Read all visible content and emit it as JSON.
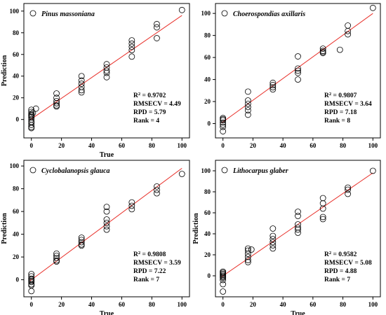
{
  "colors": {
    "regression_line": "#e8302a",
    "marker_edge": "#000000",
    "axes": "#000000"
  },
  "chart_data": [
    {
      "type": "scatter",
      "species": "Pinus massoniana",
      "xlabel": "True",
      "ylabel": "Prediction",
      "xlim": [
        -5,
        105
      ],
      "ylim": [
        -17,
        107
      ],
      "xticks": [
        0,
        20,
        40,
        60,
        80,
        100
      ],
      "yticks": [
        0,
        20,
        40,
        60,
        80,
        100
      ],
      "stats": {
        "r2_label": "R",
        "r2_value": "= 0.9702",
        "rmsecv": "RMSECV = 4.49",
        "rpd": "RPD = 5.79",
        "rank": "Rank = 4"
      },
      "fit_line": {
        "x": [
          -1,
          100
        ],
        "y": [
          -0.5,
          96
        ]
      },
      "points": [
        [
          0,
          9
        ],
        [
          0,
          7
        ],
        [
          0,
          5
        ],
        [
          0,
          3
        ],
        [
          0,
          2
        ],
        [
          0,
          0
        ],
        [
          0,
          -2
        ],
        [
          0,
          -3
        ],
        [
          0,
          -5
        ],
        [
          0,
          -7
        ],
        [
          0,
          -8
        ],
        [
          0,
          4
        ],
        [
          1,
          6
        ],
        [
          3,
          10
        ],
        [
          16.7,
          24
        ],
        [
          16.7,
          20
        ],
        [
          16.7,
          17
        ],
        [
          16.7,
          15
        ],
        [
          16.7,
          13
        ],
        [
          16.7,
          12
        ],
        [
          33.3,
          40
        ],
        [
          33.3,
          36
        ],
        [
          33.3,
          33
        ],
        [
          33.3,
          30
        ],
        [
          33.3,
          27
        ],
        [
          33.3,
          25
        ],
        [
          50,
          51
        ],
        [
          50,
          48
        ],
        [
          50,
          45
        ],
        [
          50,
          43
        ],
        [
          50,
          39
        ],
        [
          66.7,
          73
        ],
        [
          66.7,
          70
        ],
        [
          66.7,
          67
        ],
        [
          66.7,
          64
        ],
        [
          66.7,
          58
        ],
        [
          83.3,
          88
        ],
        [
          83.3,
          85
        ],
        [
          83.3,
          75
        ],
        [
          100,
          101
        ]
      ]
    },
    {
      "type": "scatter",
      "species": "Choerospondias axillaris",
      "xlabel": "",
      "ylabel": "",
      "xlim": [
        -5,
        105
      ],
      "ylim": [
        -13,
        109
      ],
      "xticks": [
        0,
        20,
        40,
        60,
        80,
        100
      ],
      "yticks": [
        0,
        20,
        40,
        60,
        80,
        100
      ],
      "stats": {
        "r2_label": "R",
        "r2_value": "= 0.9807",
        "rmsecv": "RMSECV = 3.64",
        "rpd": "RPD = 7.18",
        "rank": "Rank = 8"
      },
      "fit_line": {
        "x": [
          -1,
          100
        ],
        "y": [
          0.5,
          100
        ]
      },
      "points": [
        [
          0,
          5
        ],
        [
          0,
          3
        ],
        [
          0,
          1
        ],
        [
          0,
          -1
        ],
        [
          0,
          -3
        ],
        [
          0,
          -7
        ],
        [
          0,
          4
        ],
        [
          16.7,
          29
        ],
        [
          16.7,
          21
        ],
        [
          16.7,
          18
        ],
        [
          16.7,
          15
        ],
        [
          16.7,
          12
        ],
        [
          16.7,
          8
        ],
        [
          33.3,
          37
        ],
        [
          33.3,
          35
        ],
        [
          33.3,
          33
        ],
        [
          33.3,
          31
        ],
        [
          50,
          61
        ],
        [
          50,
          50
        ],
        [
          50,
          48
        ],
        [
          50,
          46
        ],
        [
          50,
          40
        ],
        [
          66.7,
          68
        ],
        [
          66.7,
          66
        ],
        [
          66.7,
          65
        ],
        [
          66.7,
          64
        ],
        [
          78,
          67
        ],
        [
          83.3,
          89
        ],
        [
          83.3,
          84
        ],
        [
          83.3,
          81
        ],
        [
          100,
          105
        ]
      ]
    },
    {
      "type": "scatter",
      "species": "Cyclobalanopsis glauca",
      "xlabel": "True",
      "ylabel": "Prediction",
      "xlim": [
        -5,
        105
      ],
      "ylim": [
        -15,
        105
      ],
      "xticks": [
        0,
        20,
        40,
        60,
        80,
        100
      ],
      "yticks": [
        0,
        20,
        40,
        60,
        80,
        100
      ],
      "stats": {
        "r2_label": "R",
        "r2_value": "= 0.9808",
        "rmsecv": "RMSECV = 3.59",
        "rpd": "RPD = 7.22",
        "rank": "Rank = 7"
      },
      "fit_line": {
        "x": [
          -1,
          100
        ],
        "y": [
          -1,
          98
        ]
      },
      "points": [
        [
          0,
          5
        ],
        [
          0,
          3
        ],
        [
          0,
          1
        ],
        [
          0,
          0
        ],
        [
          0,
          -1
        ],
        [
          0,
          -2
        ],
        [
          0,
          -4
        ],
        [
          0,
          -5
        ],
        [
          0,
          -10
        ],
        [
          16.7,
          23
        ],
        [
          16.7,
          21
        ],
        [
          16.7,
          19
        ],
        [
          16.7,
          17
        ],
        [
          16.7,
          16
        ],
        [
          33.3,
          37
        ],
        [
          33.3,
          35
        ],
        [
          33.3,
          33
        ],
        [
          33.3,
          31
        ],
        [
          33.3,
          30
        ],
        [
          50,
          64
        ],
        [
          50,
          60
        ],
        [
          50,
          53
        ],
        [
          50,
          50
        ],
        [
          50,
          47
        ],
        [
          50,
          44
        ],
        [
          66.7,
          68
        ],
        [
          66.7,
          65
        ],
        [
          66.7,
          62
        ],
        [
          83.3,
          82
        ],
        [
          83.3,
          79
        ],
        [
          83.3,
          76
        ],
        [
          100,
          93
        ]
      ]
    },
    {
      "type": "scatter",
      "species": "Lithocarpus glaber",
      "xlabel": "True",
      "ylabel": "Prediction",
      "xlim": [
        -5,
        105
      ],
      "ylim": [
        -20,
        110
      ],
      "xticks": [
        0,
        20,
        40,
        60,
        80,
        100
      ],
      "yticks": [
        0,
        20,
        40,
        60,
        80,
        100
      ],
      "stats": {
        "r2_label": "R",
        "r2_value": "= 0.9582",
        "rmsecv": "RMSECV = 5.08",
        "rpd": "RPD = 4.88",
        "rank": "Rank = 7"
      },
      "fit_line": {
        "x": [
          -1,
          100
        ],
        "y": [
          -1,
          98
        ]
      },
      "points": [
        [
          0,
          4
        ],
        [
          0,
          3
        ],
        [
          0,
          2
        ],
        [
          0,
          1
        ],
        [
          0,
          0
        ],
        [
          0,
          -1
        ],
        [
          0,
          -2
        ],
        [
          0,
          -4
        ],
        [
          0,
          -8
        ],
        [
          0,
          -15
        ],
        [
          16.7,
          26
        ],
        [
          16.7,
          24
        ],
        [
          16.7,
          21
        ],
        [
          16.7,
          18
        ],
        [
          16.7,
          15
        ],
        [
          16.7,
          13
        ],
        [
          19,
          25
        ],
        [
          33.3,
          45
        ],
        [
          33.3,
          38
        ],
        [
          33.3,
          35
        ],
        [
          33.3,
          32
        ],
        [
          33.3,
          29
        ],
        [
          33.3,
          26
        ],
        [
          50,
          61
        ],
        [
          50,
          57
        ],
        [
          50,
          49
        ],
        [
          50,
          46
        ],
        [
          50,
          44
        ],
        [
          50,
          41
        ],
        [
          66.7,
          74
        ],
        [
          66.7,
          69
        ],
        [
          66.7,
          64
        ],
        [
          66.7,
          56
        ],
        [
          66.7,
          54
        ],
        [
          83.3,
          84
        ],
        [
          83.3,
          82
        ],
        [
          83.3,
          78
        ],
        [
          100,
          100
        ]
      ]
    }
  ]
}
